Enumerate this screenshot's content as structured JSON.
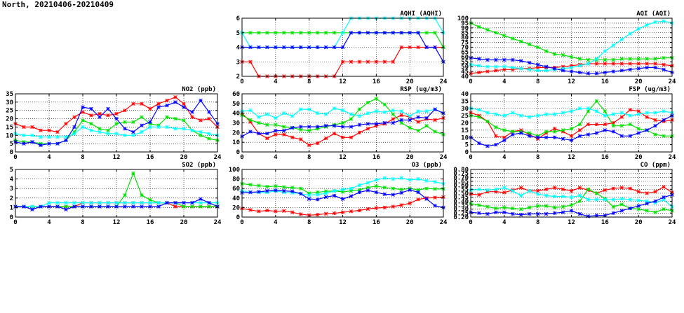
{
  "page": {
    "title": "North, 20210406-20210409"
  },
  "colors": {
    "red": "#ff0000",
    "green": "#00e000",
    "cyan": "#00ffff",
    "blue": "#0000ff"
  },
  "chart_data": [
    {
      "id": "aqhi",
      "type": "line",
      "title": "AQHI (AQHI)",
      "xlim": [
        0,
        24
      ],
      "xticks": [
        0,
        4,
        8,
        12,
        16,
        20,
        24
      ],
      "ylim": [
        2,
        6
      ],
      "yticks": [
        2,
        3,
        4,
        5,
        6
      ],
      "grid": true,
      "series": [
        {
          "color": "red",
          "values": [
            3,
            3,
            2,
            2,
            2,
            2,
            2,
            2,
            2,
            2,
            2,
            2,
            3,
            3,
            3,
            3,
            3,
            3,
            3,
            4,
            4,
            4,
            4,
            4,
            4
          ]
        },
        {
          "color": "green",
          "values": [
            5,
            5,
            5,
            5,
            5,
            5,
            5,
            5,
            5,
            5,
            5,
            5,
            5,
            5,
            5,
            5,
            5,
            5,
            5,
            5,
            5,
            5,
            5,
            5,
            4
          ]
        },
        {
          "color": "cyan",
          "values": [
            5,
            4,
            4,
            4,
            4,
            4,
            4,
            4,
            4,
            4,
            4,
            4,
            5,
            6,
            6,
            6,
            6,
            6,
            6,
            6,
            6,
            6,
            6,
            6,
            5
          ]
        },
        {
          "color": "blue",
          "values": [
            4,
            4,
            4,
            4,
            4,
            4,
            4,
            4,
            4,
            4,
            4,
            4,
            4,
            5,
            5,
            5,
            5,
            5,
            5,
            5,
            5,
            5,
            4,
            4,
            3
          ]
        }
      ]
    },
    {
      "id": "aqi",
      "type": "line",
      "title": "AQI (AQI)",
      "xlim": [
        0,
        24
      ],
      "xticks": [
        0,
        4,
        8,
        12,
        16,
        20,
        24
      ],
      "ylim": [
        40,
        100
      ],
      "yticks": [
        40,
        45,
        50,
        55,
        60,
        65,
        70,
        75,
        80,
        85,
        90,
        95,
        100
      ],
      "grid": true,
      "series": [
        {
          "color": "red",
          "values": [
            43,
            44,
            45,
            46,
            47,
            47,
            48,
            48,
            49,
            49,
            49,
            50,
            51,
            52,
            53,
            53,
            53,
            53,
            53,
            53,
            53,
            53,
            53,
            52,
            51
          ]
        },
        {
          "color": "green",
          "values": [
            95,
            91,
            88,
            85,
            82,
            79,
            76,
            73,
            70,
            66,
            63,
            62,
            60,
            58,
            57,
            57,
            57,
            57,
            58,
            58,
            58,
            58,
            58,
            59,
            59
          ]
        },
        {
          "color": "cyan",
          "values": [
            52,
            51,
            50,
            50,
            50,
            49,
            48,
            47,
            46,
            46,
            47,
            48,
            49,
            51,
            53,
            58,
            66,
            72,
            78,
            84,
            89,
            93,
            96,
            97,
            95
          ]
        },
        {
          "color": "blue",
          "values": [
            59,
            58,
            57,
            57,
            57,
            57,
            56,
            54,
            52,
            50,
            48,
            46,
            45,
            44,
            43,
            43,
            44,
            45,
            46,
            47,
            48,
            49,
            49,
            47,
            44
          ]
        }
      ]
    },
    {
      "id": "no2",
      "type": "line",
      "title": "NO2 (ppb)",
      "xlim": [
        0,
        24
      ],
      "xticks": [
        0,
        4,
        8,
        12,
        16,
        20,
        24
      ],
      "ylim": [
        0,
        35
      ],
      "yticks": [
        0,
        5,
        10,
        15,
        20,
        25,
        30,
        35
      ],
      "grid": true,
      "series": [
        {
          "color": "red",
          "values": [
            17,
            15,
            15,
            13,
            13,
            12,
            17,
            21,
            24,
            22,
            23,
            22,
            23,
            25,
            29,
            29,
            26,
            29,
            31,
            33,
            29,
            21,
            19,
            20,
            15
          ]
        },
        {
          "color": "green",
          "values": [
            7,
            6,
            6,
            5,
            5,
            5,
            7,
            12,
            19,
            17,
            14,
            13,
            17,
            18,
            18,
            21,
            17,
            16,
            21,
            20,
            19,
            13,
            10,
            8,
            7
          ]
        },
        {
          "color": "cyan",
          "values": [
            11,
            10,
            10,
            9,
            9,
            9,
            9,
            11,
            15,
            13,
            12,
            11,
            11,
            10,
            10,
            12,
            15,
            15,
            15,
            14,
            14,
            13,
            12,
            11,
            10
          ]
        },
        {
          "color": "blue",
          "values": [
            6,
            5,
            6,
            4,
            5,
            5,
            7,
            15,
            27,
            26,
            21,
            26,
            20,
            14,
            12,
            16,
            18,
            27,
            28,
            30,
            27,
            24,
            31,
            24,
            17
          ]
        }
      ]
    },
    {
      "id": "rsp",
      "type": "line",
      "title": "RSP (ug/m3)",
      "xlim": [
        0,
        24
      ],
      "xticks": [
        0,
        4,
        8,
        12,
        16,
        20,
        24
      ],
      "ylim": [
        0,
        60
      ],
      "yticks": [
        0,
        10,
        20,
        30,
        40,
        50,
        60
      ],
      "grid": true,
      "series": [
        {
          "color": "red",
          "values": [
            40,
            31,
            19,
            14,
            18,
            18,
            15,
            13,
            7,
            9,
            14,
            19,
            15,
            15,
            20,
            24,
            27,
            29,
            34,
            38,
            36,
            31,
            34,
            33,
            35
          ]
        },
        {
          "color": "green",
          "values": [
            38,
            33,
            30,
            28,
            28,
            26,
            25,
            23,
            22,
            24,
            26,
            28,
            30,
            34,
            44,
            51,
            55,
            49,
            39,
            30,
            25,
            22,
            27,
            21,
            18
          ]
        },
        {
          "color": "cyan",
          "values": [
            42,
            43,
            36,
            39,
            35,
            40,
            37,
            44,
            44,
            40,
            39,
            45,
            43,
            39,
            37,
            40,
            42,
            41,
            43,
            42,
            37,
            42,
            42,
            44,
            40
          ]
        },
        {
          "color": "blue",
          "values": [
            16,
            21,
            19,
            19,
            22,
            22,
            25,
            26,
            26,
            26,
            27,
            27,
            26,
            26,
            28,
            29,
            29,
            30,
            30,
            33,
            33,
            36,
            35,
            44,
            40
          ]
        }
      ]
    },
    {
      "id": "fsp",
      "type": "line",
      "title": "FSP (ug/m3)",
      "xlim": [
        0,
        24
      ],
      "xticks": [
        0,
        4,
        8,
        12,
        16,
        20,
        24
      ],
      "ylim": [
        0,
        40
      ],
      "yticks": [
        0,
        5,
        10,
        15,
        20,
        25,
        30,
        35,
        40
      ],
      "grid": true,
      "series": [
        {
          "color": "red",
          "values": [
            27,
            25,
            21,
            11,
            10,
            14,
            15,
            12,
            9,
            13,
            16,
            14,
            11,
            15,
            19,
            19,
            19,
            20,
            24,
            29,
            28,
            24,
            22,
            21,
            22
          ]
        },
        {
          "color": "green",
          "values": [
            25,
            24,
            21,
            17,
            15,
            14,
            14,
            13,
            11,
            14,
            14,
            15,
            16,
            19,
            28,
            35,
            28,
            18,
            18,
            19,
            16,
            15,
            12,
            11,
            11
          ]
        },
        {
          "color": "cyan",
          "values": [
            30,
            29,
            27,
            26,
            25,
            27,
            25,
            24,
            25,
            26,
            26,
            27,
            28,
            30,
            30,
            28,
            25,
            26,
            27,
            25,
            26,
            27,
            27,
            28,
            27
          ]
        },
        {
          "color": "blue",
          "values": [
            10,
            6,
            4,
            5,
            8,
            12,
            13,
            11,
            10,
            10,
            10,
            9,
            8,
            11,
            12,
            13,
            15,
            14,
            11,
            11,
            13,
            15,
            18,
            22,
            25
          ]
        }
      ]
    },
    {
      "id": "so2",
      "type": "line",
      "title": "SO2 (ppb)",
      "xlim": [
        0,
        24
      ],
      "xticks": [
        0,
        4,
        8,
        12,
        16,
        20,
        24
      ],
      "ylim": [
        0,
        5
      ],
      "yticks": [
        0,
        1,
        2,
        3,
        4,
        5
      ],
      "grid": true,
      "series": [
        {
          "color": "red",
          "values": [
            1.1,
            1.1,
            1.1,
            1.1,
            1.1,
            1.1,
            1.1,
            1.1,
            1.5,
            1.5,
            1.5,
            1.5,
            1.5,
            1.5,
            1.5,
            1.5,
            1.5,
            1.5,
            1.5,
            1.1,
            1.1,
            1.1,
            1.1,
            1.1,
            1.1
          ]
        },
        {
          "color": "green",
          "values": [
            1.1,
            1.1,
            1.1,
            1.1,
            1.1,
            1.1,
            1.1,
            1.1,
            1.1,
            1.1,
            1.1,
            1.1,
            1.1,
            2.3,
            4.6,
            2.3,
            1.8,
            1.5,
            1.5,
            1.5,
            1.1,
            1.1,
            1.1,
            1.1,
            1.1
          ]
        },
        {
          "color": "cyan",
          "values": [
            1.1,
            1.1,
            1.1,
            1.1,
            1.5,
            1.5,
            1.5,
            1.5,
            1.5,
            1.5,
            1.5,
            1.5,
            1.5,
            1.5,
            1.5,
            1.5,
            1.5,
            1.5,
            1.5,
            1.5,
            1.5,
            1.5,
            1.5,
            1.5,
            1.5
          ]
        },
        {
          "color": "blue",
          "values": [
            1.1,
            1.1,
            0.8,
            1.1,
            1.1,
            1.1,
            0.8,
            1.1,
            1.1,
            1.1,
            1.1,
            1.1,
            1.1,
            1.1,
            1.1,
            1.1,
            1.1,
            1.1,
            1.5,
            1.5,
            1.5,
            1.5,
            1.9,
            1.5,
            1.1
          ]
        }
      ]
    },
    {
      "id": "o3",
      "type": "line",
      "title": "O3 (ppb)",
      "xlim": [
        0,
        24
      ],
      "xticks": [
        0,
        4,
        8,
        12,
        16,
        20,
        24
      ],
      "ylim": [
        0,
        100
      ],
      "yticks": [
        0,
        20,
        40,
        60,
        80,
        100
      ],
      "grid": true,
      "series": [
        {
          "color": "red",
          "values": [
            18,
            15,
            12,
            14,
            12,
            13,
            10,
            6,
            4,
            5,
            7,
            8,
            10,
            12,
            14,
            17,
            19,
            20,
            22,
            25,
            29,
            37,
            40,
            41,
            42
          ]
        },
        {
          "color": "green",
          "values": [
            70,
            68,
            66,
            64,
            65,
            63,
            62,
            60,
            50,
            52,
            54,
            55,
            53,
            55,
            57,
            62,
            65,
            62,
            60,
            58,
            60,
            57,
            60,
            59,
            59
          ]
        },
        {
          "color": "cyan",
          "values": [
            55,
            52,
            52,
            52,
            55,
            52,
            51,
            49,
            46,
            47,
            50,
            55,
            58,
            60,
            67,
            72,
            78,
            82,
            80,
            82,
            78,
            80,
            76,
            74,
            70
          ]
        },
        {
          "color": "blue",
          "values": [
            51,
            52,
            53,
            55,
            56,
            55,
            54,
            49,
            38,
            37,
            42,
            45,
            38,
            44,
            52,
            56,
            52,
            48,
            47,
            51,
            57,
            52,
            38,
            24,
            20
          ]
        }
      ]
    },
    {
      "id": "co",
      "type": "line",
      "title": "CO (ppm)",
      "xlim": [
        0,
        24
      ],
      "xticks": [
        0,
        4,
        8,
        12,
        16,
        20,
        24
      ],
      "ylim": [
        0.2,
        0.8
      ],
      "yticks": [
        0.2,
        0.25,
        0.3,
        0.35,
        0.4,
        0.45,
        0.5,
        0.55,
        0.6,
        0.65,
        0.7,
        0.75,
        0.8
      ],
      "grid": true,
      "series": [
        {
          "color": "red",
          "values": [
            0.49,
            0.48,
            0.52,
            0.52,
            0.51,
            0.54,
            0.57,
            0.53,
            0.53,
            0.55,
            0.57,
            0.55,
            0.53,
            0.57,
            0.54,
            0.5,
            0.54,
            0.56,
            0.57,
            0.56,
            0.52,
            0.5,
            0.52,
            0.58,
            0.51
          ]
        },
        {
          "color": "green",
          "values": [
            0.37,
            0.35,
            0.33,
            0.31,
            0.32,
            0.31,
            0.3,
            0.32,
            0.34,
            0.34,
            0.32,
            0.33,
            0.35,
            0.4,
            0.55,
            0.5,
            0.43,
            0.33,
            0.36,
            0.31,
            0.3,
            0.28,
            0.26,
            0.3,
            0.28
          ]
        },
        {
          "color": "cyan",
          "values": [
            0.54,
            0.55,
            0.54,
            0.55,
            0.57,
            0.53,
            0.47,
            0.53,
            0.49,
            0.47,
            0.46,
            0.46,
            0.45,
            0.47,
            0.42,
            0.42,
            0.42,
            0.42,
            0.43,
            0.42,
            0.41,
            0.4,
            0.38,
            0.42,
            0.33
          ]
        },
        {
          "color": "blue",
          "values": [
            0.26,
            0.25,
            0.24,
            0.26,
            0.26,
            0.24,
            0.23,
            0.24,
            0.24,
            0.24,
            0.25,
            0.26,
            0.28,
            0.24,
            0.21,
            0.22,
            0.22,
            0.25,
            0.28,
            0.31,
            0.34,
            0.37,
            0.4,
            0.45,
            0.48
          ]
        }
      ]
    }
  ]
}
